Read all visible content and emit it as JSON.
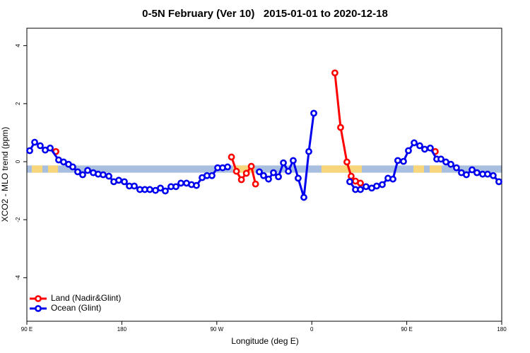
{
  "chart_data": {
    "type": "line",
    "title": "0-5N February (Ver 10)   2015-01-01 to 2020-12-18",
    "x_label": "Longitude (deg E)",
    "y_label": "XCO2 - MLO trend (ppm)",
    "xlim": [
      90,
      540
    ],
    "xticks": [
      {
        "value": 90,
        "label": "90 E"
      },
      180,
      {
        "value": 270,
        "label": "90 W"
      },
      {
        "value": 360,
        "label": "0"
      },
      {
        "value": 450,
        "label": "90 E"
      },
      180
    ],
    "ylim": [
      -5.5,
      4.6
    ],
    "yticks": [
      -4,
      -2,
      0,
      2,
      4
    ],
    "grid": false,
    "legend": "bottom-left",
    "band": {
      "ylim": [
        -0.38,
        -0.13
      ],
      "color": "#a9bfdf",
      "land_color": "#f8d77c",
      "land_spans": [
        [
          94.7,
          104.7
        ],
        [
          110.1,
          119.5
        ],
        [
          285.5,
          305.6
        ],
        [
          369.2,
          407.4
        ],
        [
          456.3,
          466.4
        ],
        [
          471.7,
          483.1
        ]
      ]
    },
    "series": [
      {
        "name": "Land (Nadir&Glint)",
        "color": "#ff0000",
        "x": [
          117.5,
          null,
          283.9,
          288.6,
          293.3,
          298.0,
          302.7,
          306.7,
          null,
          381.9,
          387.3,
          393.3,
          397.3,
          401.4,
          406.1,
          null,
          477.0
        ],
        "values": [
          0.35,
          null,
          0.16,
          -0.33,
          -0.62,
          -0.4,
          -0.16,
          -0.77,
          null,
          3.06,
          1.18,
          -0.01,
          -0.5,
          -0.67,
          -0.74,
          null,
          0.35
        ]
      },
      {
        "name": "Ocean (Glint)",
        "color": "#0000ee",
        "x": [
          92.7,
          97.4,
          102.7,
          107.4,
          112.1,
          120.1,
          124.8,
          129.5,
          133.5,
          138.2,
          142.9,
          147.6,
          152.9,
          157.6,
          162.3,
          167.7,
          172.4,
          177.1,
          182.4,
          187.1,
          191.8,
          197.1,
          201.8,
          206.5,
          211.9,
          216.6,
          221.2,
          226.6,
          231.3,
          236.0,
          241.3,
          246.0,
          250.7,
          256.1,
          260.7,
          265.4,
          270.8,
          275.5,
          280.2,
          null,
          310.3,
          314.3,
          319.0,
          323.7,
          328.4,
          333.1,
          337.8,
          342.4,
          347.1,
          352.5,
          357.2,
          361.9,
          null,
          396.0,
          401.4,
          406.1,
          411.4,
          416.8,
          421.5,
          426.8,
          432.2,
          436.9,
          441.5,
          446.9,
          451.6,
          457.0,
          462.3,
          467.0,
          472.3,
          478.4,
          482.4,
          487.1,
          491.8,
          497.1,
          501.8,
          506.5,
          511.9,
          516.5,
          521.9,
          526.6,
          531.9,
          537.3
        ],
        "values": [
          0.38,
          0.67,
          0.55,
          0.4,
          0.47,
          0.06,
          -0.01,
          -0.09,
          -0.18,
          -0.35,
          -0.45,
          -0.3,
          -0.38,
          -0.43,
          -0.45,
          -0.5,
          -0.69,
          -0.64,
          -0.69,
          -0.84,
          -0.84,
          -0.96,
          -0.96,
          -0.96,
          -0.99,
          -0.91,
          -1.01,
          -0.86,
          -0.86,
          -0.74,
          -0.74,
          -0.79,
          -0.82,
          -0.55,
          -0.48,
          -0.48,
          -0.21,
          -0.21,
          -0.18,
          null,
          -0.35,
          -0.48,
          -0.6,
          -0.38,
          -0.52,
          -0.04,
          -0.33,
          0.04,
          -0.57,
          -1.23,
          0.35,
          1.67,
          null,
          -0.69,
          -0.96,
          -0.96,
          -0.86,
          -0.91,
          -0.84,
          -0.79,
          -0.57,
          -0.6,
          0.04,
          0.01,
          0.38,
          0.65,
          0.55,
          0.43,
          0.47,
          0.09,
          0.09,
          -0.01,
          -0.09,
          -0.21,
          -0.38,
          -0.45,
          -0.28,
          -0.38,
          -0.43,
          -0.43,
          -0.48,
          -0.69
        ]
      }
    ]
  }
}
